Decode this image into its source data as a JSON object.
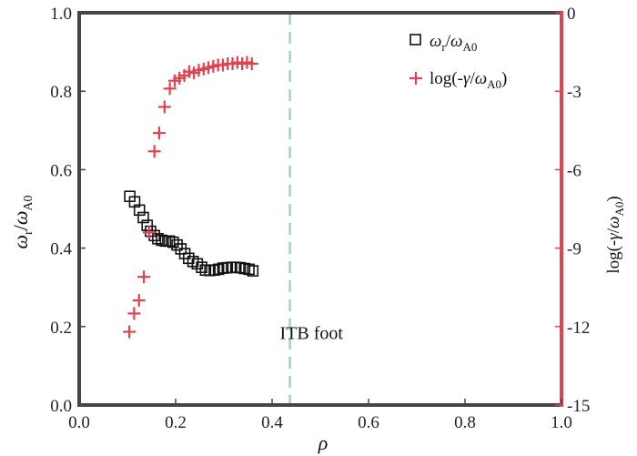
{
  "chart_data": {
    "type": "scatter",
    "xlabel": "ρ",
    "ylabel_left": "ω_r/ω_A0",
    "ylabel_right": "log(-γ/ω_A0)",
    "xlim": [
      0.0,
      1.0
    ],
    "ylim_left": [
      0.0,
      1.0
    ],
    "ylim_right": [
      -15,
      0
    ],
    "x_ticks": [
      "0.0",
      "0.2",
      "0.4",
      "0.6",
      "0.8",
      "1.0"
    ],
    "y_ticks_left": [
      "0.0",
      "0.2",
      "0.4",
      "0.6",
      "0.8",
      "1.0"
    ],
    "y_ticks_right": [
      "-15",
      "-12",
      "-9",
      "-6",
      "-3",
      "0"
    ],
    "grid": false,
    "legend_position": "top-right",
    "colors": {
      "left_axis": "#4a4542",
      "right_axis": "#e0424f",
      "series_omega": "#111111",
      "series_gamma": "#e0424f",
      "itb_line": "#9fd3dc"
    },
    "series": [
      {
        "name": "ω_r/ω_A0",
        "axis": "left",
        "marker": "open-square",
        "x": [
          0.105,
          0.115,
          0.125,
          0.133,
          0.141,
          0.148,
          0.156,
          0.163,
          0.171,
          0.179,
          0.187,
          0.195,
          0.203,
          0.211,
          0.219,
          0.227,
          0.236,
          0.245,
          0.254,
          0.262,
          0.271,
          0.28,
          0.289,
          0.298,
          0.307,
          0.316,
          0.325,
          0.334,
          0.343,
          0.352,
          0.36
        ],
        "y": [
          0.532,
          0.518,
          0.497,
          0.478,
          0.458,
          0.443,
          0.432,
          0.424,
          0.42,
          0.418,
          0.418,
          0.415,
          0.408,
          0.398,
          0.386,
          0.374,
          0.366,
          0.36,
          0.351,
          0.344,
          0.343,
          0.344,
          0.346,
          0.349,
          0.35,
          0.351,
          0.351,
          0.35,
          0.348,
          0.346,
          0.342
        ]
      },
      {
        "name": "log(-γ/ω_A0)",
        "axis": "right",
        "marker": "plus",
        "x": [
          0.104,
          0.114,
          0.124,
          0.134,
          0.145,
          0.156,
          0.166,
          0.177,
          0.188,
          0.198,
          0.208,
          0.218,
          0.228,
          0.238,
          0.248,
          0.258,
          0.268,
          0.278,
          0.288,
          0.298,
          0.308,
          0.318,
          0.328,
          0.338,
          0.348,
          0.358
        ],
        "y": [
          -12.2,
          -11.5,
          -11.0,
          -10.1,
          -8.4,
          -5.3,
          -4.6,
          -3.6,
          -2.9,
          -2.6,
          -2.5,
          -2.4,
          -2.25,
          -2.3,
          -2.2,
          -2.15,
          -2.1,
          -2.05,
          -2.0,
          -2.0,
          -1.95,
          -1.95,
          -1.9,
          -1.95,
          -1.9,
          -1.95
        ]
      }
    ],
    "reference_line": {
      "x": 0.437,
      "style": "dashed"
    },
    "annotations": [
      {
        "text": "ITB foot",
        "x": 0.435,
        "y_left": 0.145
      }
    ]
  }
}
